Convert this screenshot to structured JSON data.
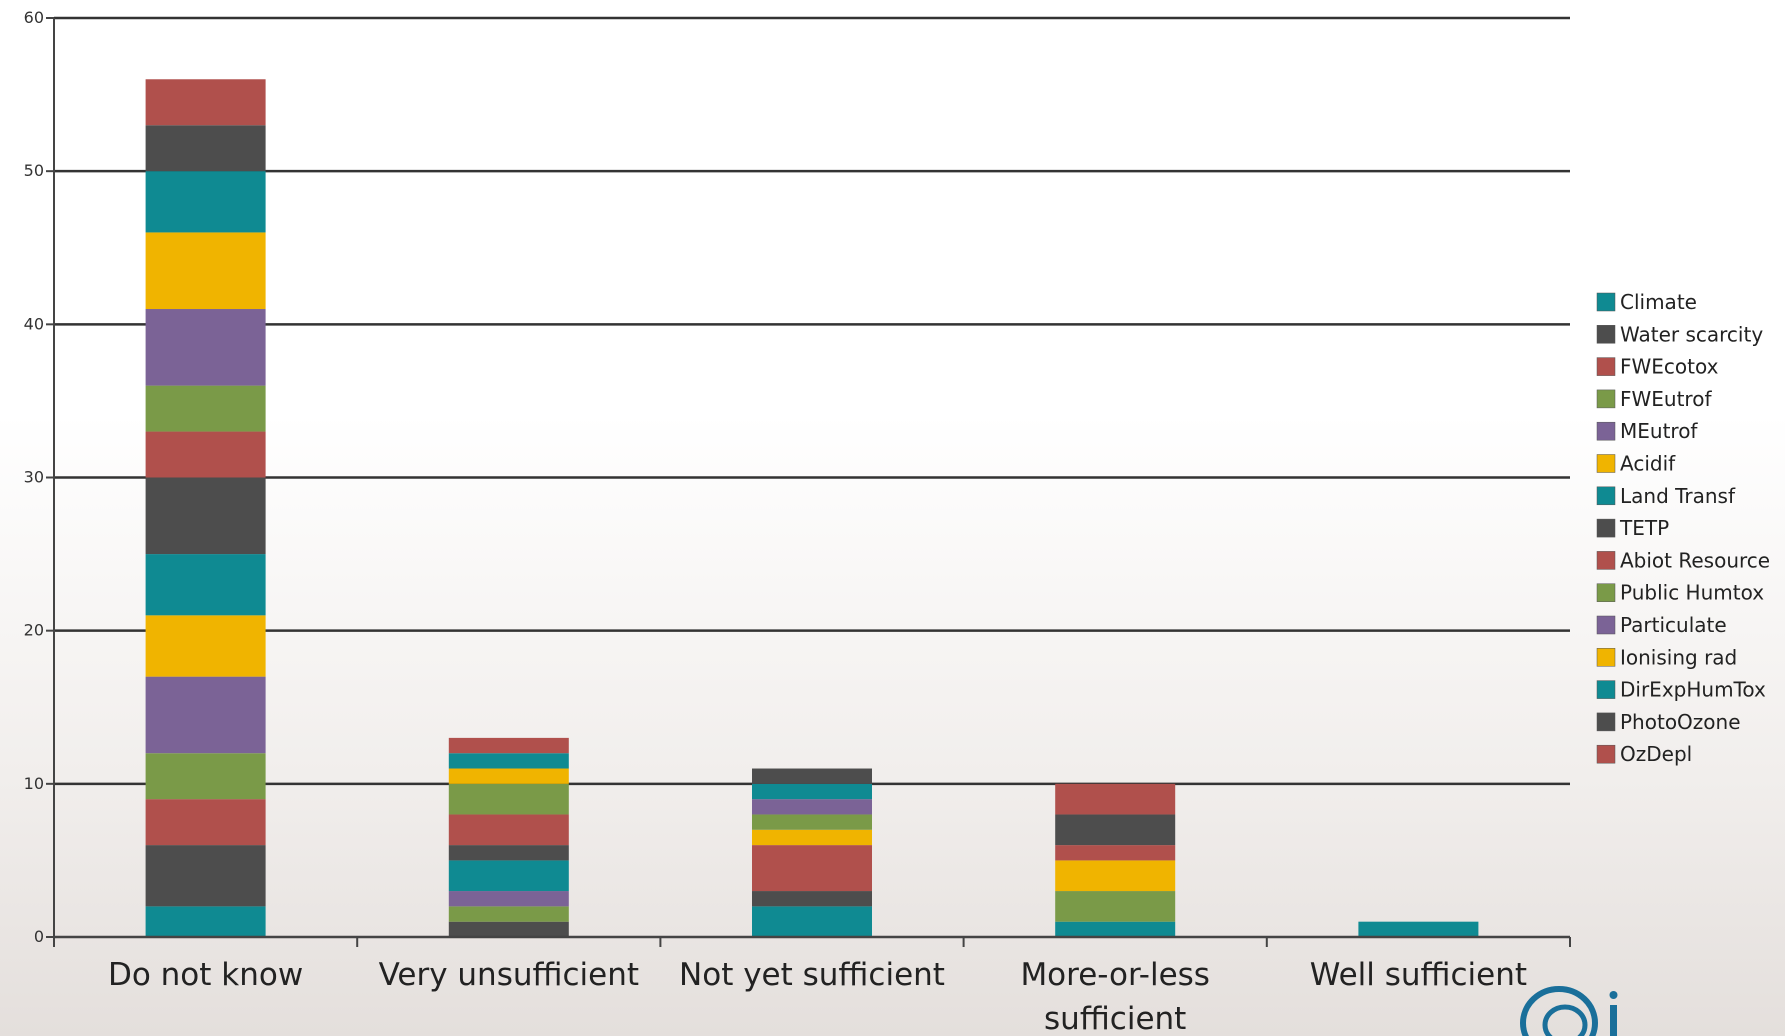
{
  "chart_data": {
    "type": "bar",
    "stacked": true,
    "categories": [
      "Do not know",
      "Very unsufficient",
      "Not yet sufficient",
      "More-or-less sufficient",
      "Well sufficient"
    ],
    "category_lines": [
      [
        "Do not know"
      ],
      [
        "Very unsufficient"
      ],
      [
        "Not yet sufficient"
      ],
      [
        "More-or-less",
        "sufficient"
      ],
      [
        "Well sufficient"
      ]
    ],
    "ylim": [
      0,
      60
    ],
    "yticks": [
      0,
      10,
      20,
      30,
      40,
      50,
      60
    ],
    "grid": true,
    "legend_position": "right",
    "series": [
      {
        "name": "Climate",
        "color": "#0f8a92",
        "values": [
          2,
          0,
          2,
          1,
          1
        ]
      },
      {
        "name": "Water scarcity",
        "color": "#4d4d4d",
        "values": [
          4,
          1,
          1,
          0,
          0
        ]
      },
      {
        "name": "FWEcotox",
        "color": "#b0504c",
        "values": [
          3,
          0,
          3,
          0,
          0
        ]
      },
      {
        "name": "FWEutrof",
        "color": "#7a9a48",
        "values": [
          3,
          1,
          0,
          2,
          0
        ]
      },
      {
        "name": "MEutrof",
        "color": "#7b6396",
        "values": [
          5,
          1,
          0,
          0,
          0
        ]
      },
      {
        "name": "Acidif",
        "color": "#f0b400",
        "values": [
          4,
          0,
          1,
          2,
          0
        ]
      },
      {
        "name": "Land Transf",
        "color": "#0f8a92",
        "values": [
          4,
          2,
          0,
          0,
          0
        ]
      },
      {
        "name": "TETP",
        "color": "#4d4d4d",
        "values": [
          5,
          1,
          0,
          0,
          0
        ]
      },
      {
        "name": "Abiot Resource",
        "color": "#b0504c",
        "values": [
          3,
          2,
          0,
          1,
          0
        ]
      },
      {
        "name": "Public Humtox",
        "color": "#7a9a48",
        "values": [
          3,
          2,
          1,
          0,
          0
        ]
      },
      {
        "name": "Particulate",
        "color": "#7b6396",
        "values": [
          5,
          0,
          1,
          0,
          0
        ]
      },
      {
        "name": "Ionising rad",
        "color": "#f0b400",
        "values": [
          5,
          1,
          0,
          0,
          0
        ]
      },
      {
        "name": "DirExpHumTox",
        "color": "#0f8a92",
        "values": [
          4,
          1,
          1,
          0,
          0
        ]
      },
      {
        "name": "PhotoOzone",
        "color": "#4d4d4d",
        "values": [
          3,
          0,
          1,
          2,
          0
        ]
      },
      {
        "name": "OzDepl",
        "color": "#b0504c",
        "values": [
          3,
          1,
          0,
          2,
          0
        ]
      }
    ]
  },
  "logo": {
    "icon": "spiral-logo-icon",
    "color": "#1a6f9a"
  }
}
